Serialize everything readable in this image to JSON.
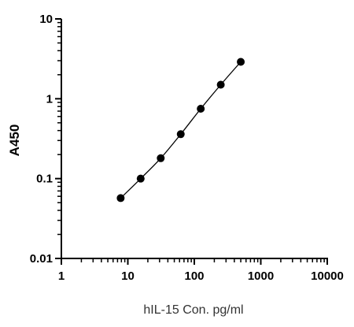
{
  "chart_data": {
    "type": "scatter",
    "title": "",
    "xlabel": "hIL-15 Con. pg/ml",
    "ylabel": "A450",
    "x_scale": "log",
    "y_scale": "log",
    "xlim": [
      1,
      10000
    ],
    "ylim": [
      0.01,
      10
    ],
    "x_ticks": [
      "1",
      "10",
      "100",
      "1000",
      "10000"
    ],
    "y_ticks": [
      "0.01",
      "0.1",
      "1",
      "10"
    ],
    "grid": false,
    "legend": "none",
    "fit_line": true,
    "series": [
      {
        "x": [
          7.8,
          15.6,
          31.25,
          62.5,
          125,
          250,
          500
        ],
        "y": [
          0.057,
          0.1,
          0.18,
          0.36,
          0.75,
          1.5,
          2.9
        ]
      }
    ],
    "colors": {
      "points": "#000000",
      "line": "#000000",
      "axis": "#000000"
    }
  }
}
